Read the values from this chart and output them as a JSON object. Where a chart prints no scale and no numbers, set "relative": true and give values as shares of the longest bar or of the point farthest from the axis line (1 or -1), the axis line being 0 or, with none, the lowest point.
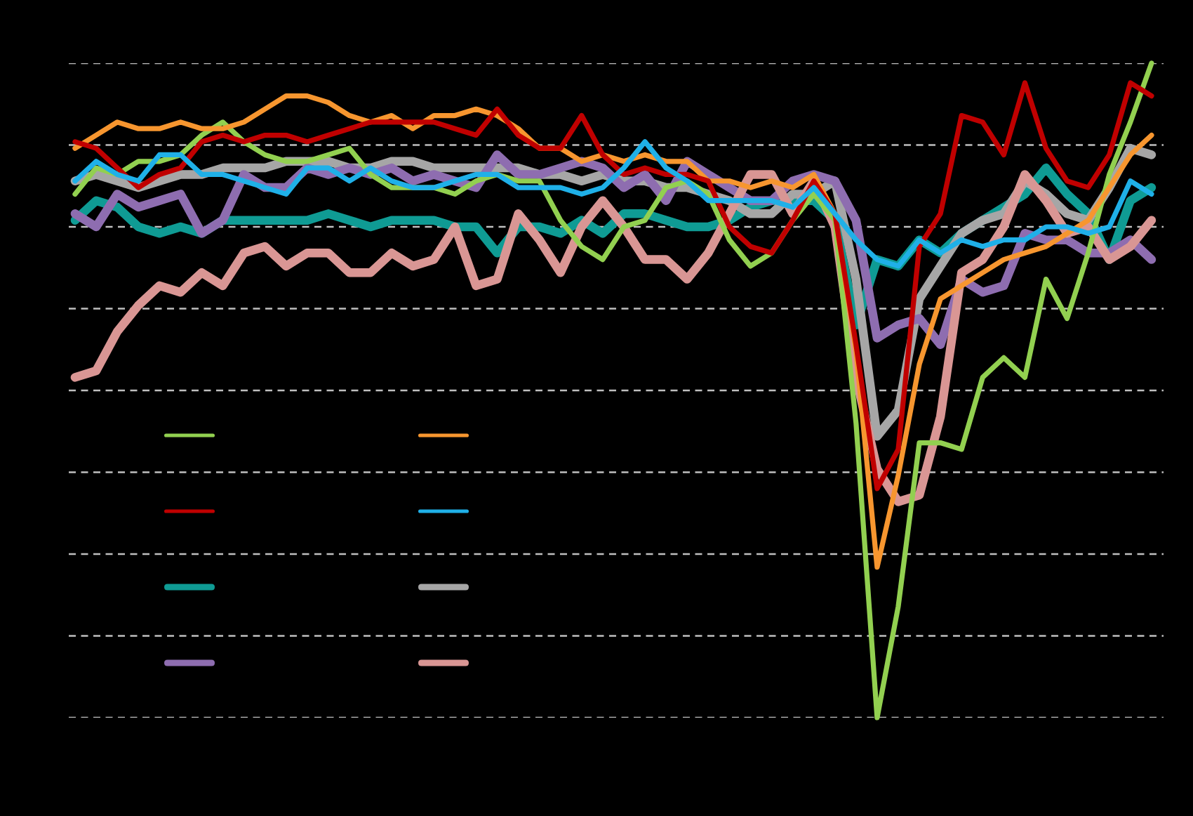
{
  "chart_data": {
    "type": "line",
    "relative": true,
    "grid": "y",
    "line_style": "solid",
    "marker": "none",
    "categories": [
      null,
      null,
      null,
      null,
      null,
      null,
      null,
      null,
      null,
      null,
      null,
      null,
      null,
      null,
      null,
      null,
      null,
      null,
      null,
      null,
      null,
      null,
      null,
      null,
      null,
      null,
      null,
      null,
      null,
      null,
      null,
      null,
      null,
      null,
      null,
      null,
      null,
      null,
      null,
      null,
      null,
      null,
      null,
      null,
      null,
      null,
      null,
      null,
      null,
      null,
      null,
      null
    ],
    "series": [
      {
        "color": "#92d050",
        "values": [
          0.8,
          0.84,
          0.83,
          0.85,
          0.85,
          0.86,
          0.89,
          0.91,
          0.88,
          0.86,
          0.85,
          0.85,
          0.86,
          0.87,
          0.83,
          0.81,
          0.81,
          0.81,
          0.8,
          0.82,
          0.83,
          0.82,
          0.82,
          0.76,
          0.72,
          0.7,
          0.75,
          0.76,
          0.81,
          0.82,
          0.8,
          0.73,
          0.69,
          0.71,
          0.76,
          0.8,
          0.76,
          0.45,
          0.0,
          0.17,
          0.42,
          0.42,
          0.41,
          0.52,
          0.55,
          0.52,
          0.67,
          0.61,
          0.71,
          0.83,
          0.91,
          1.0
        ]
      },
      {
        "color": "#f7962f",
        "values": [
          0.87,
          0.89,
          0.91,
          0.9,
          0.9,
          0.91,
          0.9,
          0.9,
          0.91,
          0.93,
          0.95,
          0.95,
          0.94,
          0.92,
          0.91,
          0.92,
          0.9,
          0.92,
          0.92,
          0.93,
          0.92,
          0.9,
          0.87,
          0.87,
          0.85,
          0.86,
          0.85,
          0.86,
          0.85,
          0.85,
          0.82,
          0.82,
          0.81,
          0.82,
          0.81,
          0.83,
          0.77,
          0.56,
          0.23,
          0.37,
          0.54,
          0.64,
          0.66,
          0.68,
          0.7,
          0.71,
          0.72,
          0.74,
          0.76,
          0.81,
          0.86,
          0.89
        ]
      },
      {
        "color": "#c00000",
        "values": [
          0.88,
          0.87,
          0.84,
          0.81,
          0.83,
          0.84,
          0.88,
          0.89,
          0.88,
          0.89,
          0.89,
          0.88,
          0.89,
          0.9,
          0.91,
          0.91,
          0.91,
          0.91,
          0.9,
          0.89,
          0.93,
          0.89,
          0.87,
          0.87,
          0.92,
          0.86,
          0.83,
          0.84,
          0.83,
          0.83,
          0.82,
          0.75,
          0.72,
          0.71,
          0.76,
          0.82,
          0.77,
          0.57,
          0.35,
          0.41,
          0.72,
          0.77,
          0.92,
          0.91,
          0.86,
          0.97,
          0.87,
          0.82,
          0.81,
          0.86,
          0.97,
          0.95
        ]
      },
      {
        "color": "#1fb0e8",
        "values": [
          0.82,
          0.85,
          0.83,
          0.82,
          0.86,
          0.86,
          0.83,
          0.83,
          0.82,
          0.81,
          0.8,
          0.84,
          0.84,
          0.82,
          0.84,
          0.82,
          0.81,
          0.81,
          0.82,
          0.83,
          0.83,
          0.81,
          0.81,
          0.81,
          0.8,
          0.81,
          0.84,
          0.88,
          0.84,
          0.82,
          0.79,
          0.79,
          0.79,
          0.79,
          0.78,
          0.81,
          0.77,
          0.73,
          0.7,
          0.69,
          0.73,
          0.71,
          0.73,
          0.72,
          0.73,
          0.73,
          0.75,
          0.75,
          0.74,
          0.75,
          0.82,
          0.8
        ]
      },
      {
        "color": "#0f9b94",
        "values": [
          0.76,
          0.79,
          0.78,
          0.75,
          0.74,
          0.75,
          0.74,
          0.76,
          0.76,
          0.76,
          0.76,
          0.76,
          0.77,
          0.76,
          0.75,
          0.76,
          0.76,
          0.76,
          0.75,
          0.75,
          0.71,
          0.75,
          0.75,
          0.74,
          0.76,
          0.74,
          0.77,
          0.77,
          0.76,
          0.75,
          0.75,
          0.76,
          0.78,
          0.79,
          0.79,
          0.79,
          0.76,
          0.6,
          0.7,
          0.69,
          0.73,
          0.71,
          0.74,
          0.76,
          0.78,
          0.8,
          0.84,
          0.8,
          0.77,
          0.7,
          0.79,
          0.81
        ]
      },
      {
        "color": "#a6a6a6",
        "values": [
          0.82,
          0.83,
          0.82,
          0.81,
          0.82,
          0.83,
          0.83,
          0.84,
          0.84,
          0.84,
          0.85,
          0.85,
          0.85,
          0.84,
          0.84,
          0.85,
          0.85,
          0.84,
          0.84,
          0.84,
          0.84,
          0.84,
          0.83,
          0.83,
          0.82,
          0.83,
          0.82,
          0.82,
          0.81,
          0.81,
          0.8,
          0.79,
          0.77,
          0.77,
          0.8,
          0.8,
          0.82,
          0.67,
          0.43,
          0.47,
          0.64,
          0.69,
          0.74,
          0.76,
          0.77,
          0.82,
          0.8,
          0.77,
          0.76,
          0.81,
          0.87,
          0.86
        ]
      },
      {
        "color": "#8e6db0",
        "values": [
          0.77,
          0.75,
          0.8,
          0.78,
          0.79,
          0.8,
          0.74,
          0.76,
          0.83,
          0.81,
          0.81,
          0.84,
          0.83,
          0.84,
          0.83,
          0.84,
          0.82,
          0.83,
          0.82,
          0.81,
          0.86,
          0.83,
          0.83,
          0.84,
          0.85,
          0.84,
          0.81,
          0.83,
          0.79,
          0.85,
          0.83,
          0.81,
          0.79,
          0.79,
          0.82,
          0.83,
          0.82,
          0.76,
          0.58,
          0.6,
          0.61,
          0.57,
          0.67,
          0.65,
          0.66,
          0.74,
          0.73,
          0.73,
          0.71,
          0.71,
          0.73,
          0.7
        ]
      },
      {
        "color": "#d99694",
        "values": [
          0.52,
          0.53,
          0.59,
          0.63,
          0.66,
          0.65,
          0.68,
          0.66,
          0.71,
          0.72,
          0.69,
          0.71,
          0.71,
          0.68,
          0.68,
          0.71,
          0.69,
          0.7,
          0.75,
          0.66,
          0.67,
          0.77,
          0.73,
          0.68,
          0.75,
          0.79,
          0.75,
          0.7,
          0.7,
          0.67,
          0.71,
          0.77,
          0.83,
          0.83,
          0.77,
          0.82,
          0.75,
          0.52,
          0.38,
          0.33,
          0.34,
          0.46,
          0.68,
          0.7,
          0.75,
          0.83,
          0.79,
          0.74,
          0.75,
          0.7,
          0.72,
          0.76
        ]
      }
    ]
  }
}
